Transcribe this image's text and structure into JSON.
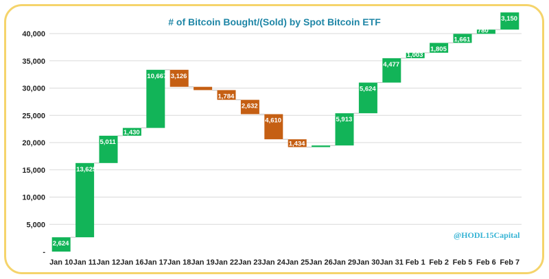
{
  "colors": {
    "increase": "#12b458",
    "decrease": "#c55f13",
    "title": "#1f86a6",
    "border": "#f5d46b",
    "watermark": "#35b3d4"
  },
  "watermark": "@HODL15Capital",
  "chart_data": {
    "type": "waterfall",
    "title": "# of Bitcoin Bought/(Sold) by Spot Bitcoin ETF",
    "xlabel": "",
    "ylabel": "",
    "ylim": [
      0,
      40000
    ],
    "y_ticks": [
      "-",
      "5,000",
      "10,000",
      "15,000",
      "20,000",
      "25,000",
      "30,000",
      "35,000",
      "40,000"
    ],
    "grid": true,
    "categories": [
      "Jan 10",
      "Jan 11",
      "Jan 12",
      "Jan 16",
      "Jan 17",
      "Jan 18",
      "Jan 19",
      "Jan 22",
      "Jan 23",
      "Jan 24",
      "Jan 25",
      "Jan 26",
      "Jan 29",
      "Jan 30",
      "Jan 31",
      "Feb 1",
      "Feb 2",
      "Feb 5",
      "Feb 6",
      "Feb 7"
    ],
    "values": [
      2624,
      13625,
      5011,
      1430,
      10667,
      -3126,
      -600,
      -1784,
      -2632,
      -4610,
      -1434,
      300,
      5913,
      5624,
      4477,
      1003,
      1805,
      1661,
      780,
      3150
    ],
    "data_labels": [
      "2,624",
      "13,625",
      "5,011",
      "1,430",
      "10,667",
      "3,126",
      "",
      "1,784",
      "2,632",
      "4,610",
      "1,434",
      "",
      "5,913",
      "5,624",
      "4,477",
      "1,003",
      "1,805",
      "1,661",
      "780",
      "3,150"
    ]
  }
}
